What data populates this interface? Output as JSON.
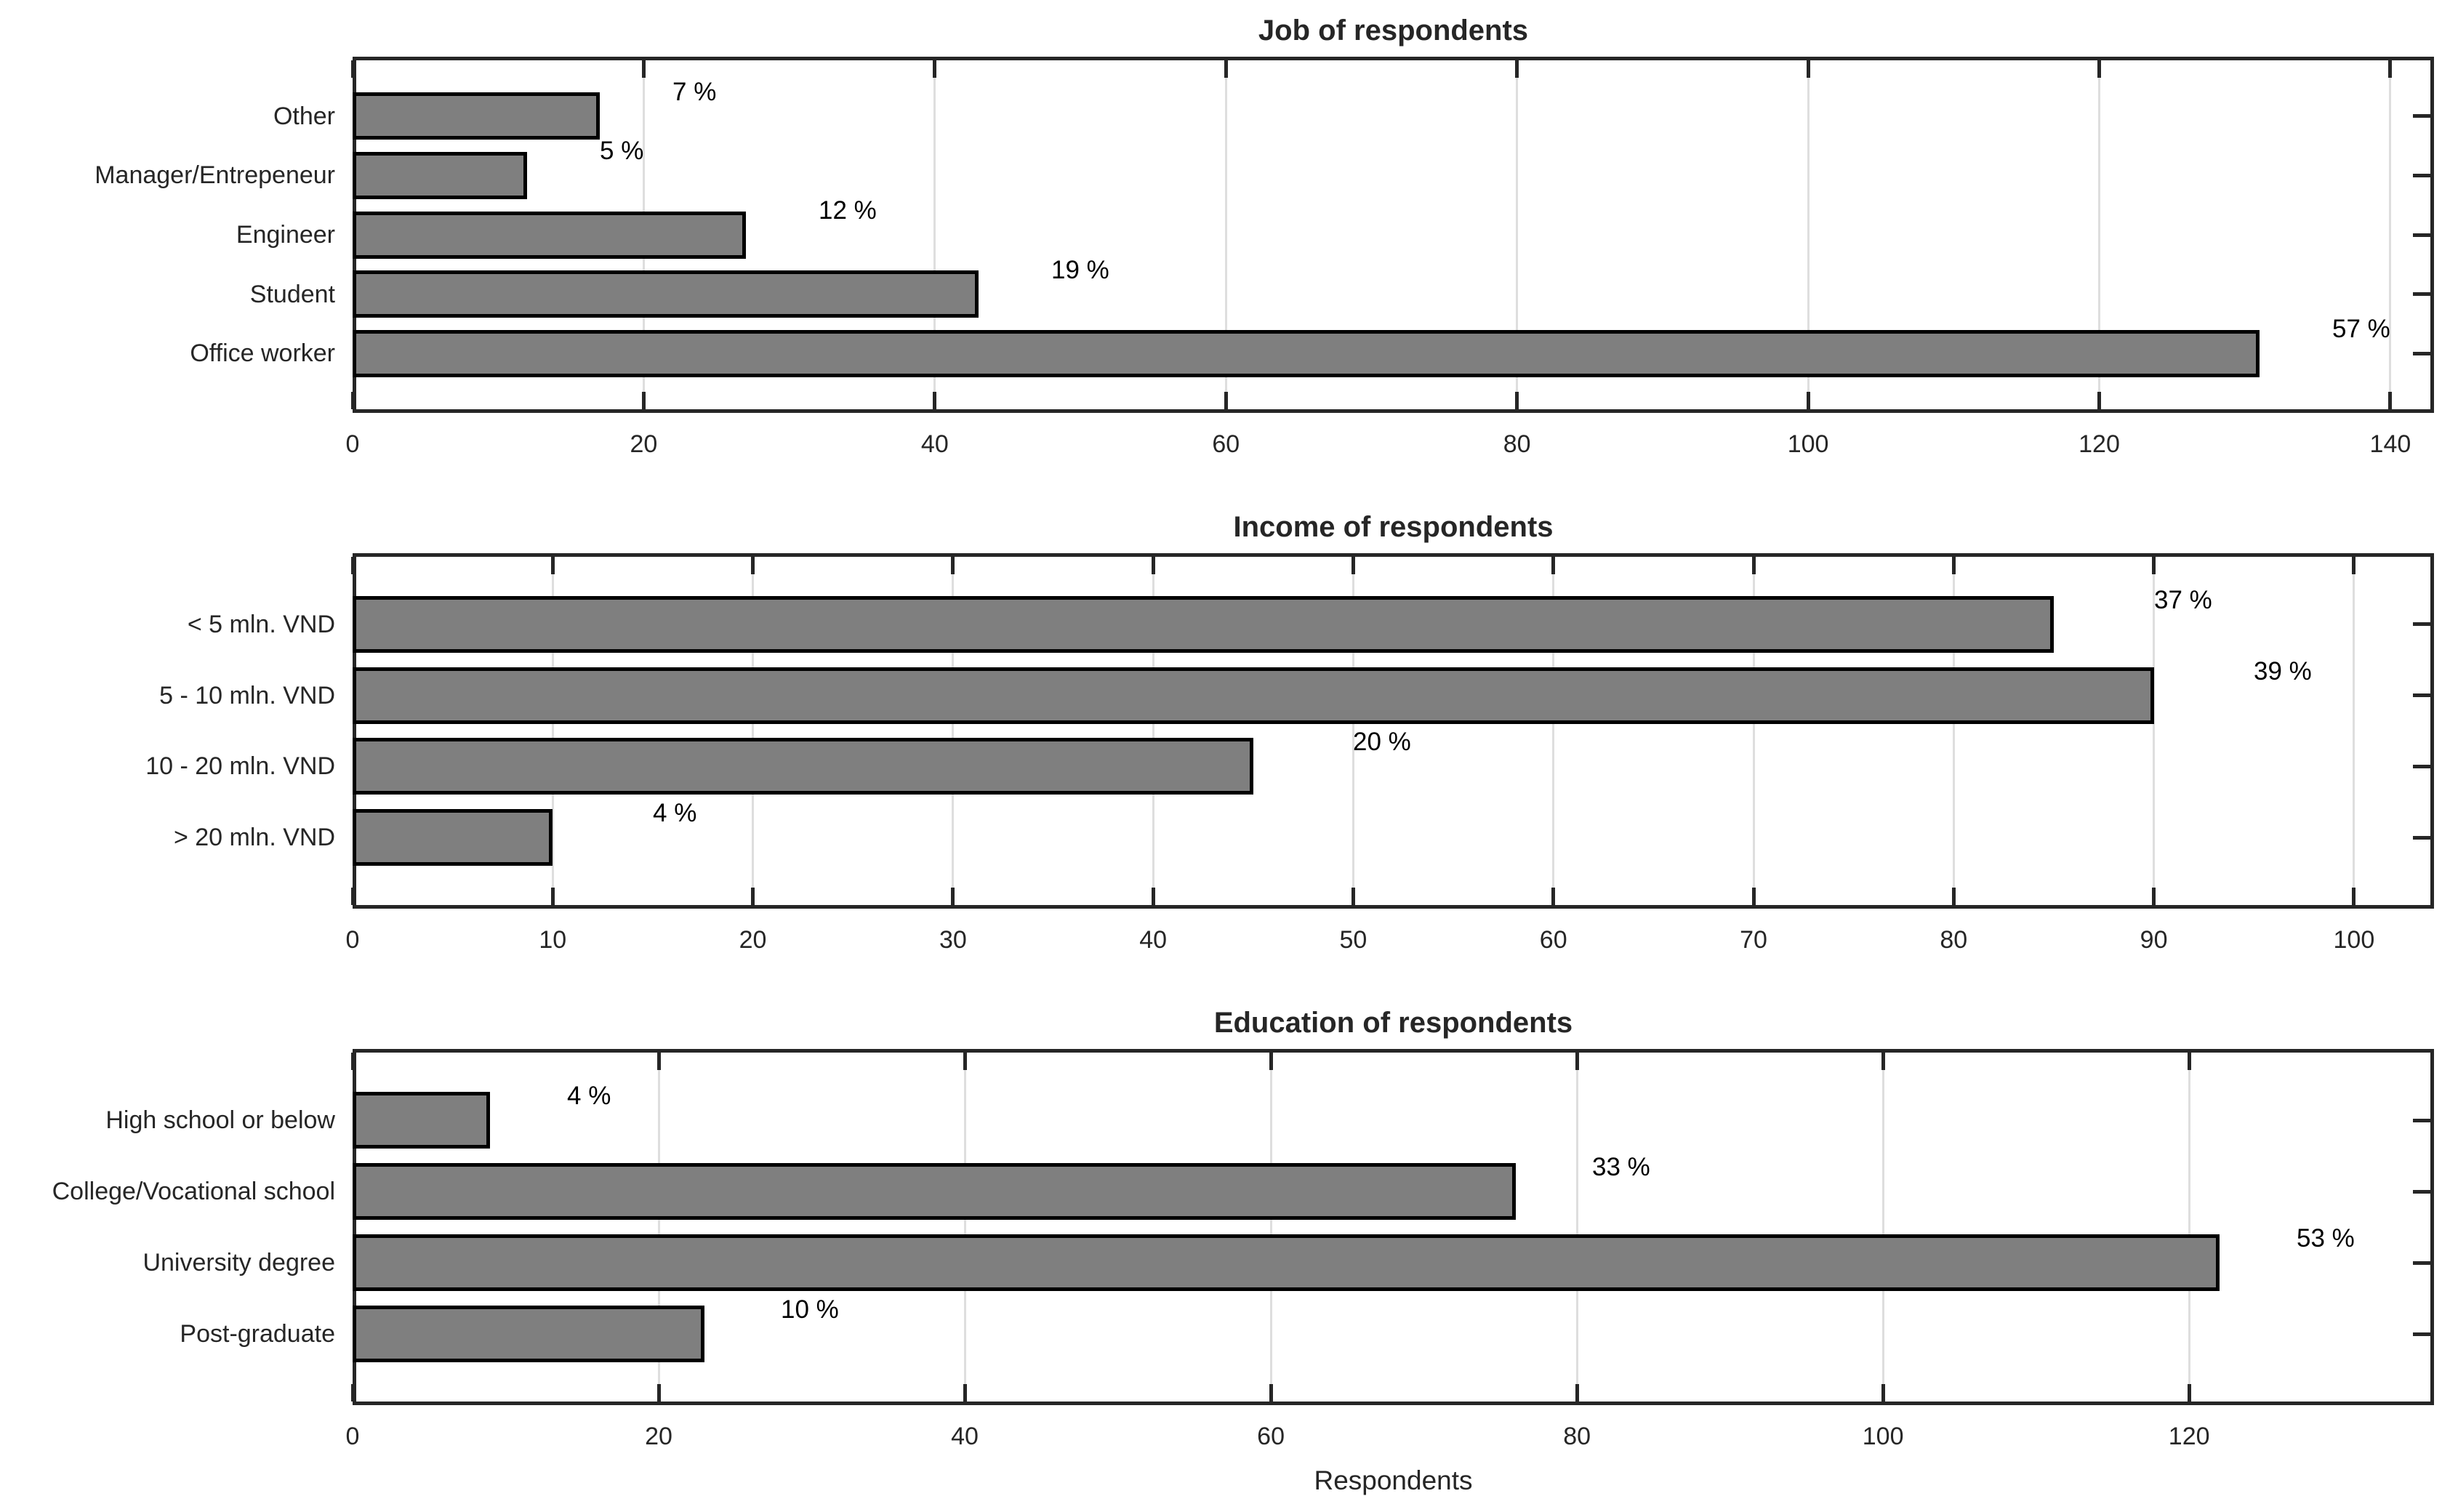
{
  "figure": {
    "background": "#ffffff",
    "bar_color": "#7f7f7f",
    "bar_edge_color": "#000000",
    "grid_color": "#dedede",
    "axis_color": "#262626"
  },
  "x_axis_label": "Respondents",
  "chart_data": [
    {
      "type": "bar",
      "orientation": "horizontal",
      "title": "Job of respondents",
      "categories": [
        "Other",
        "Manager/Entrepeneur",
        "Engineer",
        "Student",
        "Office worker"
      ],
      "values": [
        17,
        12,
        27,
        43,
        131
      ],
      "bar_labels": [
        "7 %",
        "5 %",
        "12 %",
        "19 %",
        "57 %"
      ],
      "x_ticks": [
        0,
        20,
        40,
        60,
        80,
        100,
        120,
        140
      ],
      "xlim": [
        0,
        143
      ],
      "xlabel": "",
      "grid": "vertical",
      "legend": "none"
    },
    {
      "type": "bar",
      "orientation": "horizontal",
      "title": "Income of respondents",
      "categories": [
        "< 5 mln. VND",
        "5 - 10 mln. VND",
        "10 - 20 mln. VND",
        "> 20 mln. VND"
      ],
      "values": [
        85,
        90,
        45,
        10
      ],
      "bar_labels": [
        "37 %",
        "39 %",
        "20 %",
        "4 %"
      ],
      "x_ticks": [
        0,
        10,
        20,
        30,
        40,
        50,
        60,
        70,
        80,
        90,
        100
      ],
      "xlim": [
        0,
        104
      ],
      "xlabel": "",
      "grid": "vertical",
      "legend": "none"
    },
    {
      "type": "bar",
      "orientation": "horizontal",
      "title": "Education of respondents",
      "categories": [
        "High school or below",
        "College/Vocational school",
        "University degree",
        "Post-graduate"
      ],
      "values": [
        9,
        76,
        122,
        23
      ],
      "bar_labels": [
        "4 %",
        "33 %",
        "53 %",
        "10 %"
      ],
      "x_ticks": [
        0,
        20,
        40,
        60,
        80,
        100,
        120
      ],
      "xlim": [
        0,
        136
      ],
      "xlabel": "Respondents",
      "grid": "vertical",
      "legend": "none"
    }
  ]
}
